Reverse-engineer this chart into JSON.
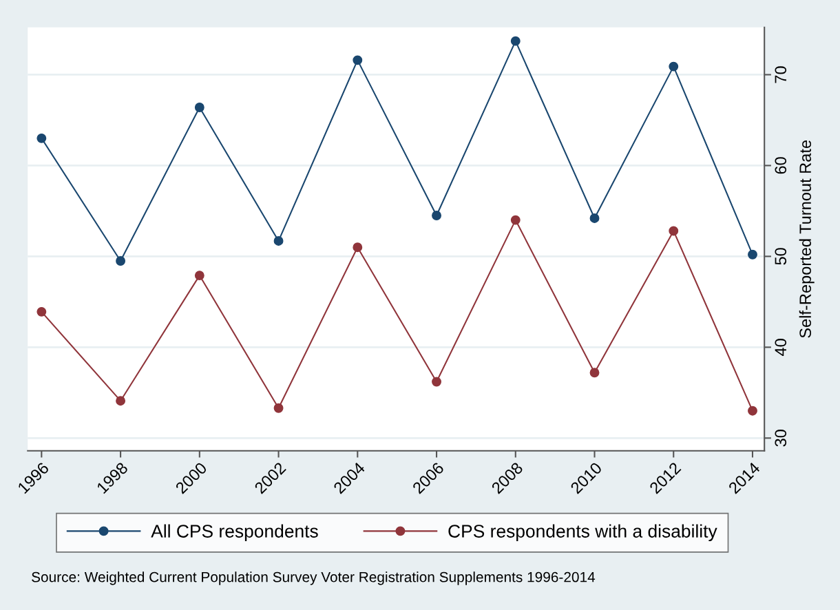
{
  "chart_data": {
    "type": "line",
    "ylabel": "Self-Reported Turnout Rate",
    "x": [
      1996,
      1998,
      2000,
      2002,
      2004,
      2006,
      2008,
      2010,
      2012,
      2014
    ],
    "series": [
      {
        "name": "All CPS respondents",
        "color": "#1a476f",
        "values": [
          63.0,
          49.5,
          66.4,
          51.7,
          71.6,
          54.5,
          73.7,
          54.2,
          70.9,
          50.2
        ]
      },
      {
        "name": "CPS respondents with a disability",
        "color": "#90353b",
        "values": [
          43.9,
          34.1,
          47.9,
          33.3,
          51.0,
          36.2,
          54.0,
          37.2,
          52.8,
          33.0
        ]
      }
    ],
    "xlim": [
      1995.65,
      2014.3
    ],
    "xticks": [
      1996,
      1998,
      2000,
      2002,
      2004,
      2006,
      2008,
      2010,
      2012,
      2014
    ],
    "ylim": [
      28.6,
      75.2
    ],
    "yticks": [
      30,
      40,
      50,
      60,
      70
    ],
    "grid": "y",
    "legend": "bottom",
    "marker": "circle",
    "line_style": "solid",
    "annotations": [
      "Source: Weighted Current Population Survey Voter Registration Supplements 1996-2014"
    ]
  }
}
